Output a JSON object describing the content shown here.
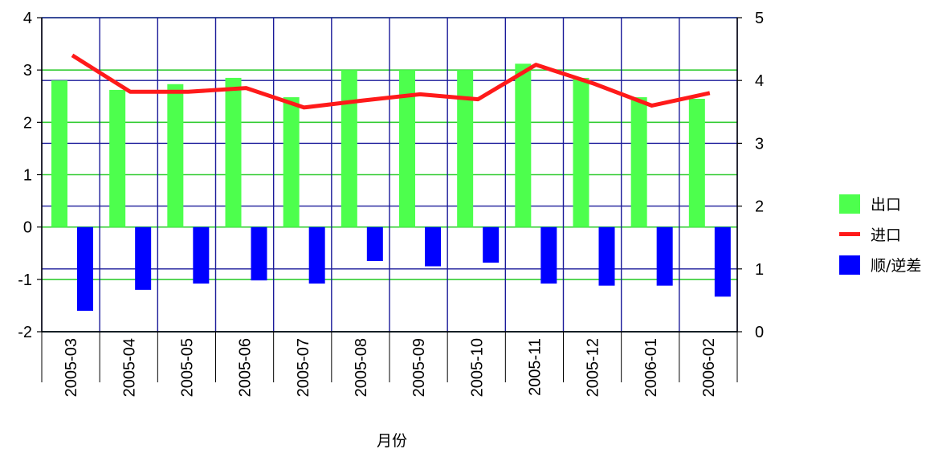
{
  "chart_data": {
    "type": "bar+line",
    "title": "",
    "xlabel": "月份",
    "ylabel": "",
    "categories": [
      "2005-03",
      "2005-04",
      "2005-05",
      "2005-06",
      "2005-07",
      "2005-08",
      "2005-09",
      "2005-10",
      "2005-11",
      "2005-12",
      "2006-01",
      "2006-02"
    ],
    "ylim_left": [
      -2,
      4
    ],
    "ylim_right": [
      0,
      5
    ],
    "yticks_left": [
      "4",
      "3",
      "2",
      "1",
      "0",
      "-1",
      "-2"
    ],
    "yticks_right": [
      "5",
      "4",
      "3",
      "2",
      "1",
      "0"
    ],
    "grid": true,
    "legend_position": "right",
    "series": [
      {
        "name": "出口",
        "type": "bar",
        "axis": "left",
        "color": "#4dff4d",
        "values": [
          2.8,
          2.62,
          2.73,
          2.85,
          2.48,
          3.0,
          3.0,
          3.0,
          3.12,
          2.85,
          2.48,
          2.45
        ]
      },
      {
        "name": "进口",
        "type": "line",
        "axis": "right",
        "color": "#ff1a1a",
        "values": [
          4.4,
          3.82,
          3.82,
          3.88,
          3.57,
          3.68,
          3.78,
          3.7,
          4.25,
          3.95,
          3.6,
          3.8
        ]
      },
      {
        "name": "顺/逆差",
        "type": "bar",
        "axis": "left",
        "color": "#0000ff",
        "values": [
          -1.6,
          -1.2,
          -1.08,
          -1.02,
          -1.08,
          -0.65,
          -0.75,
          -0.68,
          -1.08,
          -1.12,
          -1.12,
          -1.33
        ]
      }
    ]
  }
}
